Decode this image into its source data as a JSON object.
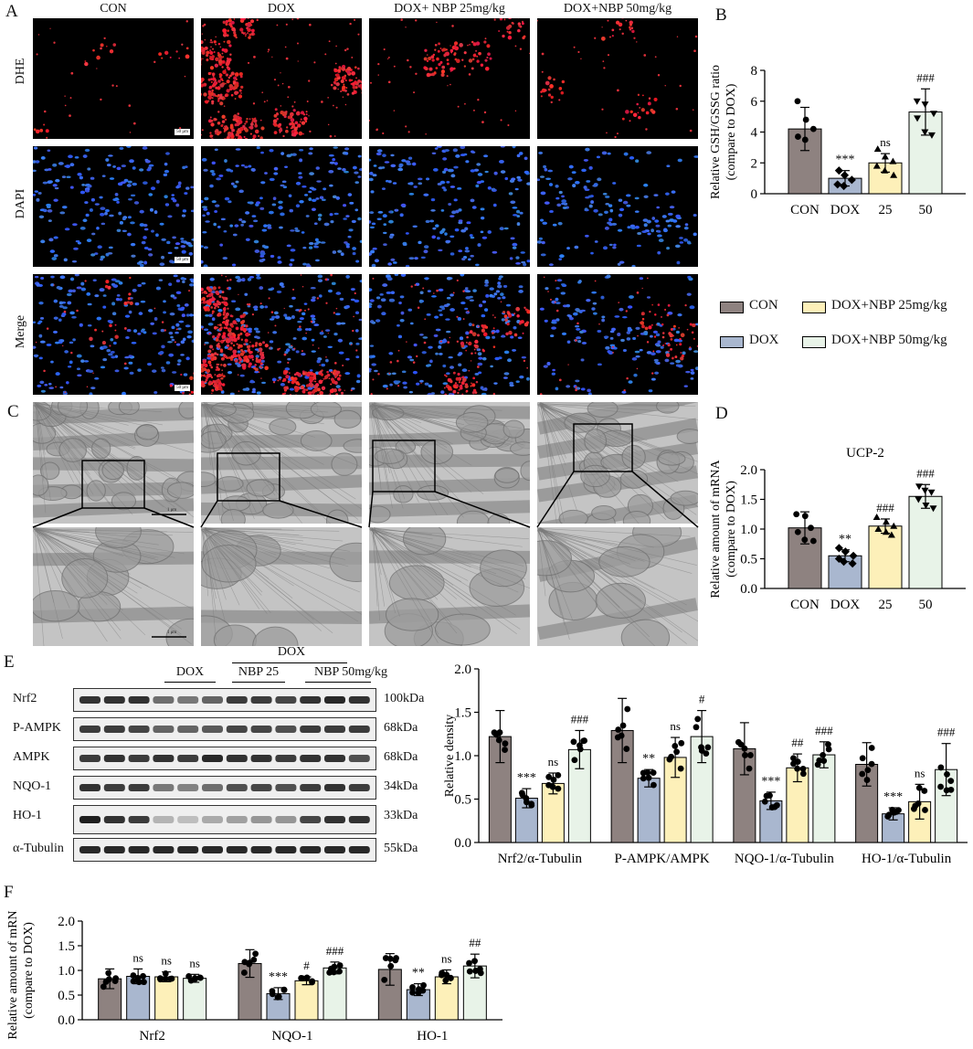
{
  "panels": {
    "A": "A",
    "B": "B",
    "C": "C",
    "D": "D",
    "E": "E",
    "F": "F"
  },
  "panelA": {
    "columns": [
      "CON",
      "DOX",
      "DOX+ NBP 25mg/kg",
      "DOX+NBP 50mg/kg"
    ],
    "rows": [
      "DHE",
      "DAPI",
      "Merge"
    ],
    "scale_text": "50 μm"
  },
  "panelC": {
    "scale_text": "1 μm"
  },
  "legend": {
    "items": [
      {
        "name": "CON",
        "color": "#8e8280"
      },
      {
        "name": "DOX",
        "color": "#a9b7cf"
      },
      {
        "name": "DOX+NBP 25mg/kg",
        "color": "#fdf0b9"
      },
      {
        "name": "DOX+NBP 50mg/kg",
        "color": "#e8f3e8"
      }
    ]
  },
  "colors": {
    "con": "#8e8280",
    "dox": "#a9b7cf",
    "nbp25": "#fdf0b9",
    "nbp50": "#e8f3e8"
  },
  "panelE": {
    "header_top": "DOX",
    "group_labels": [
      "DOX",
      "NBP 25",
      "NBP 50mg/kg"
    ],
    "proteins": [
      "Nrf2",
      "P-AMPK",
      "AMPK",
      "NQO-1",
      "HO-1",
      "α-Tubulin"
    ],
    "kda": [
      "100kDa",
      "68kDa",
      "68kDa",
      "34kDa",
      "33kDa",
      "55kDa"
    ]
  },
  "chart_data": [
    {
      "id": "B",
      "type": "bar",
      "categories": [
        "CON",
        "DOX",
        "25",
        "50"
      ],
      "values": [
        4.2,
        1.0,
        2.0,
        5.3
      ],
      "errors": [
        1.4,
        0.5,
        0.6,
        1.5
      ],
      "points": [
        [
          6.0,
          4.8,
          4.2,
          3.7,
          3.5
        ],
        [
          1.5,
          1.2,
          0.9,
          0.6,
          0.5
        ],
        [
          2.9,
          2.4,
          2.1,
          1.8,
          1.5,
          1.2
        ],
        [
          6.0,
          5.8,
          5.2,
          4.9,
          4.0,
          3.8
        ]
      ],
      "annotations": [
        "",
        "***",
        "ns",
        "###"
      ],
      "ylabel": "Relative GSH/GSSG ratio\n(compare to DOX)",
      "ylim": [
        0,
        8
      ],
      "yticks": [
        0,
        2,
        4,
        6,
        8
      ]
    },
    {
      "id": "D",
      "type": "bar",
      "title": "UCP-2",
      "categories": [
        "CON",
        "DOX",
        "25",
        "50"
      ],
      "values": [
        1.02,
        0.55,
        1.05,
        1.55
      ],
      "errors": [
        0.27,
        0.1,
        0.12,
        0.2
      ],
      "points": [
        [
          1.25,
          1.22,
          1.02,
          0.95,
          0.82,
          0.8
        ],
        [
          0.68,
          0.62,
          0.55,
          0.5,
          0.45,
          0.42
        ],
        [
          1.2,
          1.12,
          1.05,
          1.0,
          0.95,
          0.9
        ],
        [
          1.72,
          1.65,
          1.62,
          1.5,
          1.4,
          1.35
        ]
      ],
      "annotations": [
        "",
        "**",
        "###",
        "###"
      ],
      "ylabel": "Relative amount of mRNA\n(compare to DOX)",
      "ylim": [
        0,
        2.0
      ],
      "yticks": [
        0.0,
        0.5,
        1.0,
        1.5,
        2.0
      ]
    },
    {
      "id": "E",
      "type": "bar",
      "categories": [
        "Nrf2/α-Tubulin",
        "P-AMPK/AMPK",
        "NQO-1/α-Tubulin",
        "HO-1/α-Tubulin"
      ],
      "series": [
        {
          "name": "CON",
          "values": [
            1.22,
            1.29,
            1.08,
            0.9
          ],
          "errors": [
            0.3,
            0.37,
            0.3,
            0.25
          ]
        },
        {
          "name": "DOX",
          "values": [
            0.51,
            0.74,
            0.48,
            0.33
          ],
          "errors": [
            0.11,
            0.1,
            0.1,
            0.07
          ]
        },
        {
          "name": "DOX+NBP 25mg/kg",
          "values": [
            0.68,
            0.98,
            0.86,
            0.47
          ],
          "errors": [
            0.12,
            0.23,
            0.16,
            0.2
          ]
        },
        {
          "name": "DOX+NBP 50mg/kg",
          "values": [
            1.07,
            1.22,
            1.01,
            0.84
          ],
          "errors": [
            0.22,
            0.3,
            0.15,
            0.3
          ]
        }
      ],
      "annotations": [
        [
          "",
          "***",
          "ns",
          "###"
        ],
        [
          "",
          "**",
          "ns",
          "#"
        ],
        [
          "",
          "***",
          "##",
          "###"
        ],
        [
          "",
          "***",
          "ns",
          "###"
        ]
      ],
      "ylabel": "Relative density",
      "ylim": [
        0,
        2.0
      ],
      "yticks": [
        0.0,
        0.5,
        1.0,
        1.5,
        2.0
      ]
    },
    {
      "id": "F",
      "type": "bar",
      "categories": [
        "Nrf2",
        "NQO-1",
        "HO-1"
      ],
      "series": [
        {
          "name": "CON",
          "values": [
            0.83,
            1.14,
            1.02
          ],
          "errors": [
            0.2,
            0.28,
            0.32
          ]
        },
        {
          "name": "DOX",
          "values": [
            0.88,
            0.53,
            0.61
          ],
          "errors": [
            0.15,
            0.12,
            0.12
          ]
        },
        {
          "name": "DOX+NBP 25mg/kg",
          "values": [
            0.87,
            0.79,
            0.87
          ],
          "errors": [
            0.1,
            0.08,
            0.14
          ]
        },
        {
          "name": "DOX+NBP 50mg/kg",
          "values": [
            0.84,
            1.05,
            1.09
          ],
          "errors": [
            0.08,
            0.12,
            0.24
          ]
        }
      ],
      "annotations": [
        [
          "",
          "ns",
          "ns",
          "ns"
        ],
        [
          "",
          "***",
          "#",
          "###"
        ],
        [
          "",
          "**",
          "ns",
          "##"
        ]
      ],
      "ylabel": "Relative amount of mRNA\n(compare to DOX)",
      "ylim": [
        0,
        2.0
      ],
      "yticks": [
        0.0,
        0.5,
        1.0,
        1.5,
        2.0
      ]
    }
  ]
}
